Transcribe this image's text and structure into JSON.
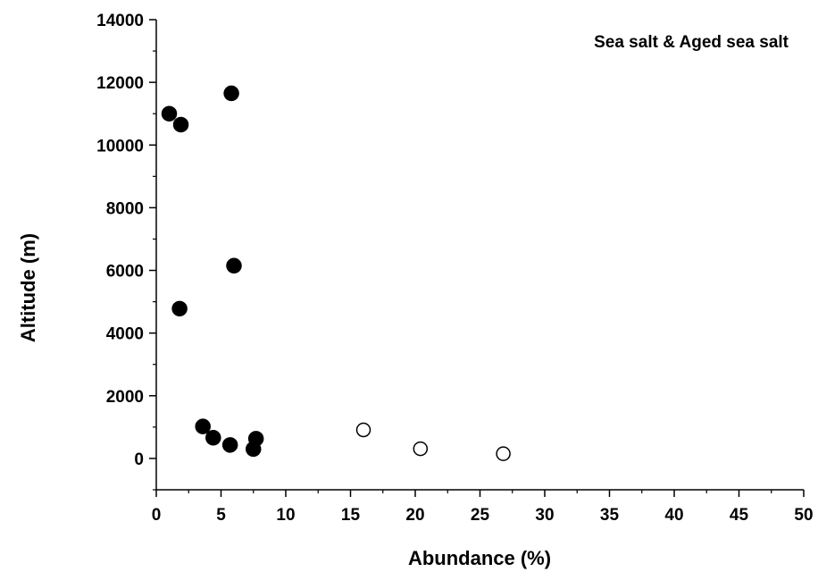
{
  "chart_data": {
    "type": "scatter",
    "title": "Sea salt & Aged sea salt",
    "xlabel": "Abundance (%)",
    "ylabel": "Altitude (m)",
    "xlim": [
      0,
      50
    ],
    "ylim": [
      -1000,
      14000
    ],
    "x_ticks": [
      0,
      5,
      10,
      15,
      20,
      25,
      30,
      35,
      40,
      45,
      50
    ],
    "x_tick_labels": [
      "0",
      "5",
      "10",
      "15",
      "20",
      "25",
      "30",
      "35",
      "40",
      "45",
      "50"
    ],
    "y_ticks": [
      0,
      2000,
      4000,
      6000,
      8000,
      10000,
      12000,
      14000
    ],
    "y_tick_labels": [
      "0",
      "2000",
      "4000",
      "6000",
      "8000",
      "10000",
      "12000",
      "14000"
    ],
    "grid": false,
    "legend": "none",
    "series": [
      {
        "marker": "filled-circle",
        "color": "#000000",
        "points": [
          {
            "x": 1.0,
            "y": 11000
          },
          {
            "x": 1.9,
            "y": 10650
          },
          {
            "x": 5.8,
            "y": 11650
          },
          {
            "x": 6.0,
            "y": 6150
          },
          {
            "x": 1.8,
            "y": 4780
          },
          {
            "x": 3.6,
            "y": 1020
          },
          {
            "x": 4.4,
            "y": 660
          },
          {
            "x": 5.7,
            "y": 430
          },
          {
            "x": 7.5,
            "y": 300
          },
          {
            "x": 7.7,
            "y": 630
          }
        ]
      },
      {
        "marker": "open-circle",
        "color": "#000000",
        "points": [
          {
            "x": 16.0,
            "y": 910
          },
          {
            "x": 20.4,
            "y": 310
          },
          {
            "x": 26.8,
            "y": 150
          }
        ]
      }
    ]
  }
}
